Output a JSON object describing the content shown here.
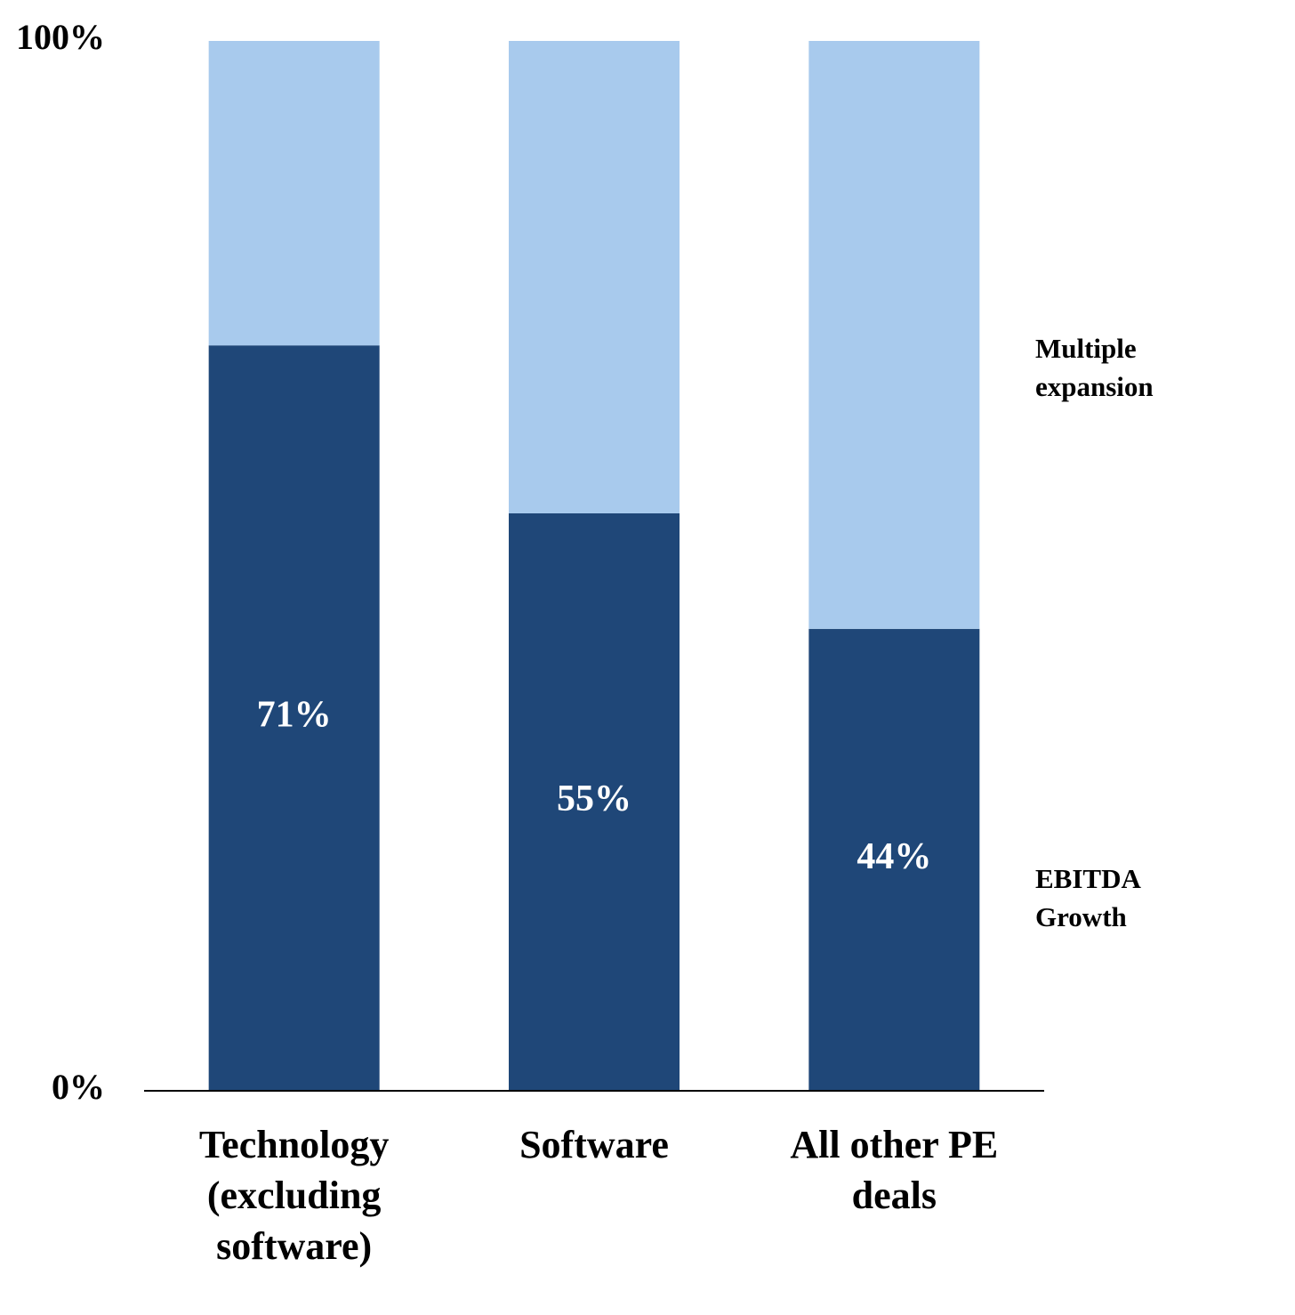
{
  "chart_data": {
    "type": "stacked-bar",
    "categories": [
      "Technology (excluding software)",
      "Software",
      "All other PE deals"
    ],
    "series": [
      {
        "name": "EBITDA Growth",
        "color": "#1f4778",
        "values": [
          71,
          55,
          44
        ],
        "value_labels": [
          "71%",
          "55%",
          "44%"
        ]
      },
      {
        "name": "Multiple expansion",
        "color": "#a8caed",
        "values": [
          29,
          45,
          56
        ]
      }
    ],
    "ylim": [
      0,
      100
    ],
    "yticks": [
      {
        "value": 0,
        "label": "0%"
      },
      {
        "value": 100,
        "label": "100%"
      }
    ],
    "grid": false
  }
}
